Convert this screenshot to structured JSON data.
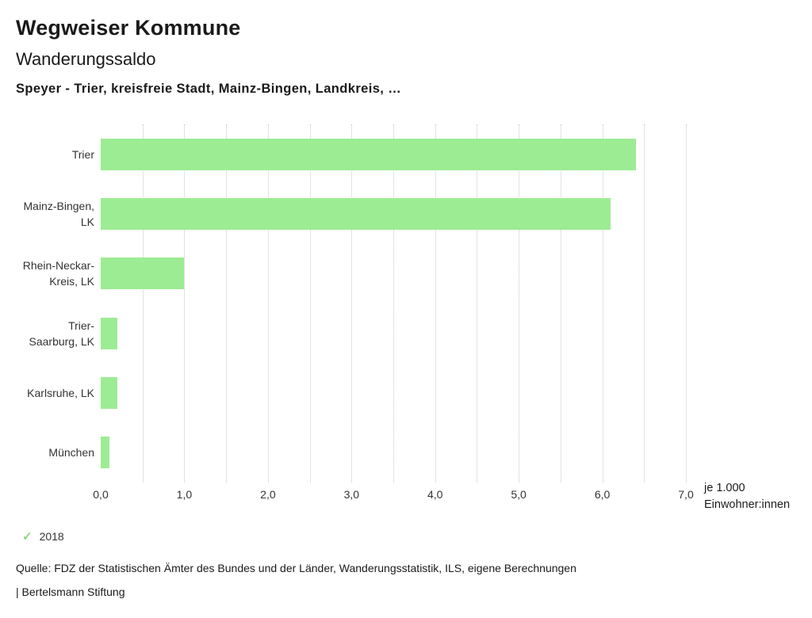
{
  "header": {
    "title": "Wegweiser Kommune",
    "subtitle": "Wanderungssaldo",
    "series_title": "Speyer - Trier, kreisfreie Stadt, Mainz-Bingen, Landkreis, …"
  },
  "chart_data": {
    "type": "bar",
    "orientation": "horizontal",
    "title": "Wanderungssaldo",
    "categories": [
      "Trier",
      "Mainz-Bingen, LK",
      "Rhein-Neckar-Kreis, LK",
      "Trier-Saarburg, LK",
      "Karlsruhe, LK",
      "München"
    ],
    "category_label_lines": [
      [
        "Trier"
      ],
      [
        "Mainz-Bingen,",
        "LK"
      ],
      [
        "Rhein-Neckar-",
        "Kreis, LK"
      ],
      [
        "Trier-",
        "Saarburg, LK"
      ],
      [
        "Karlsruhe, LK"
      ],
      [
        "München"
      ]
    ],
    "values": [
      6.4,
      6.1,
      1.0,
      0.2,
      0.2,
      0.1
    ],
    "xlim": [
      0,
      7
    ],
    "x_ticks": [
      "0,0",
      "1,0",
      "2,0",
      "3,0",
      "4,0",
      "5,0",
      "6,0",
      "7,0"
    ],
    "x_tick_values": [
      0,
      1,
      2,
      3,
      4,
      5,
      6,
      7
    ],
    "xlabel_line1": "je 1.000",
    "xlabel_line2": "Einwohner:innen",
    "grid": "dotted-vertical",
    "legend_position": "bottom-left",
    "bar_color": "#9cec93"
  },
  "legend": {
    "check_color": "#8fd584",
    "items": [
      {
        "label": "2018"
      }
    ]
  },
  "footer": {
    "source": "Quelle: FDZ der Statistischen Ämter des Bundes und der Länder, Wanderungsstatistik, ILS, eigene Berechnungen",
    "branding": "| Bertelsmann Stiftung"
  }
}
